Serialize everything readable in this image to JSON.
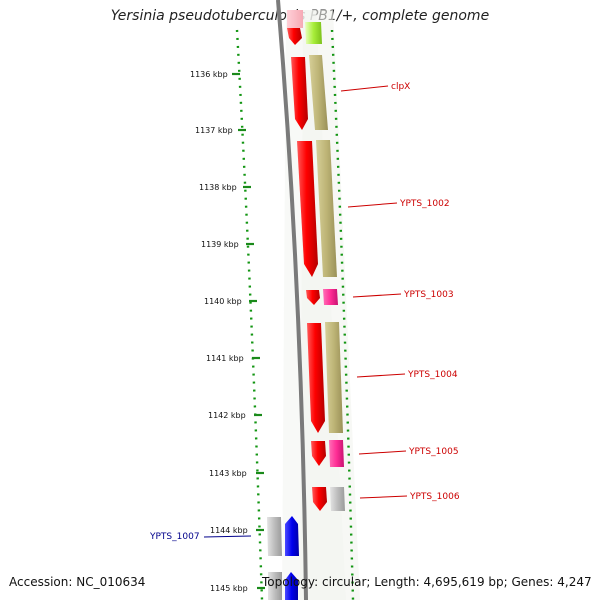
{
  "title": "Yersinia pseudotuberculosis PB1/+, complete genome",
  "footer": {
    "accession": "Accession: NC_010634",
    "topology": "Topology: circular; Length: 4,695,619 bp; Genes: 4,247"
  },
  "ticks": [
    "1136 kbp",
    "1137 kbp",
    "1138 kbp",
    "1139 kbp",
    "1140 kbp",
    "1141 kbp",
    "1142 kbp",
    "1143 kbp",
    "1144 kbp",
    "1145 kbp"
  ],
  "genes": [
    {
      "label": "clpX",
      "color": "#cc0000"
    },
    {
      "label": "YPTS_1002",
      "color": "#cc0000"
    },
    {
      "label": "YPTS_1003",
      "color": "#cc0000"
    },
    {
      "label": "YPTS_1004",
      "color": "#cc0000"
    },
    {
      "label": "YPTS_1005",
      "color": "#cc0000"
    },
    {
      "label": "YPTS_1006",
      "color": "#cc0000"
    },
    {
      "label": "YPTS_1007",
      "color": "#00008b"
    }
  ],
  "colors": {
    "forward_strand": "#ff0000",
    "reverse_strand": "#0000ee",
    "cog_olive": "#b8b070",
    "cog_magenta": "#ff3399",
    "cog_gray": "#b4b4b4",
    "backbone": "#808080",
    "tick": "#1a8a1a",
    "dotted_ring": "#129512"
  }
}
